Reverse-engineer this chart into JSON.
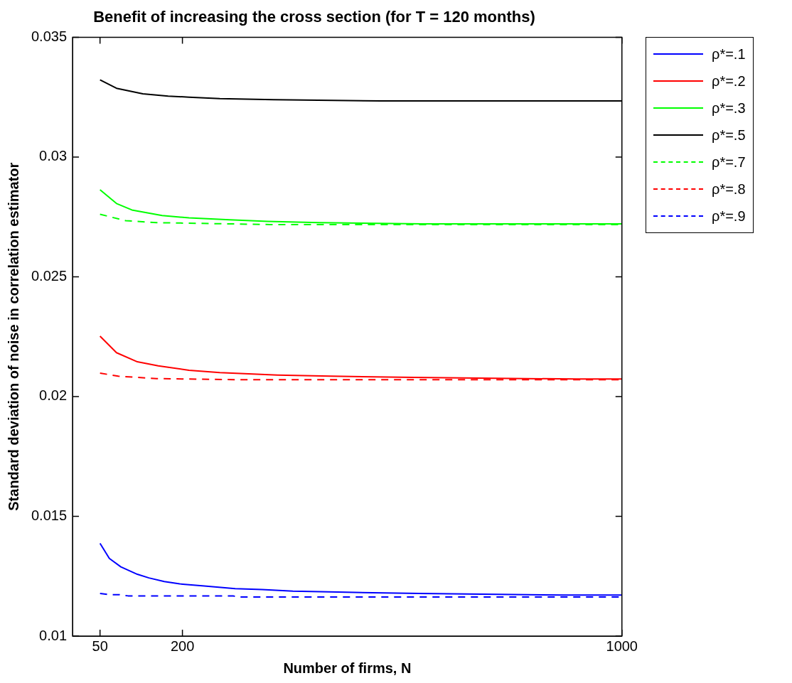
{
  "chart_data": {
    "type": "line",
    "title": "Benefit of increasing the cross section (for T = 120 months)",
    "xlabel": "Number of firms, N",
    "ylabel": "Standard deviation of noise in correlation estimator",
    "xlim": [
      0,
      1000
    ],
    "xticks": [
      50,
      200,
      1000
    ],
    "ylim": [
      0.01,
      0.035
    ],
    "yticks": [
      0.01,
      0.015,
      0.02,
      0.025,
      0.03,
      0.035
    ],
    "grid": false,
    "legend": "right",
    "marker": "none",
    "series": [
      {
        "name": "ρ*=.1",
        "color": "#0000ff",
        "line_style": "solid",
        "x": [
          50,
          67,
          88,
          118,
          139,
          167,
          195,
          240,
          296,
          345,
          401,
          498,
          631,
          893,
          1000
        ],
        "values": [
          0.01387,
          0.01324,
          0.01289,
          0.01258,
          0.01243,
          0.01228,
          0.01218,
          0.01209,
          0.01198,
          0.01194,
          0.01188,
          0.01183,
          0.01178,
          0.01171,
          0.01171
        ]
      },
      {
        "name": "ρ*=.2",
        "color": "#ff0000",
        "line_style": "solid",
        "x": [
          50,
          80,
          118,
          156,
          212,
          268,
          373,
          470,
          621,
          917,
          1000
        ],
        "values": [
          0.02252,
          0.02183,
          0.02145,
          0.02128,
          0.0211,
          0.021,
          0.0209,
          0.02085,
          0.0208,
          0.02073,
          0.02073
        ]
      },
      {
        "name": "ρ*=.3",
        "color": "#00ff00",
        "line_style": "solid",
        "x": [
          50,
          80,
          108,
          163,
          212,
          286,
          355,
          449,
          638,
          1000
        ],
        "values": [
          0.02863,
          0.02806,
          0.02779,
          0.02756,
          0.02746,
          0.02738,
          0.02731,
          0.02726,
          0.02721,
          0.02721
        ]
      },
      {
        "name": "ρ*=.5",
        "color": "#000000",
        "line_style": "solid",
        "x": [
          50,
          80,
          128,
          174,
          212,
          268,
          366,
          561,
          1000
        ],
        "values": [
          0.03322,
          0.03287,
          0.03264,
          0.03254,
          0.0325,
          0.03244,
          0.03239,
          0.03234,
          0.03234
        ]
      },
      {
        "name": "ρ*=.7",
        "color": "#00ff00",
        "line_style": "dashed",
        "x": [
          50,
          97,
          153,
          359,
          1000
        ],
        "values": [
          0.02761,
          0.02734,
          0.02726,
          0.02718,
          0.02718
        ]
      },
      {
        "name": "ρ*=.8",
        "color": "#ff0000",
        "line_style": "dashed",
        "x": [
          50,
          83,
          153,
          317,
          1000
        ],
        "values": [
          0.02098,
          0.02085,
          0.02075,
          0.0207,
          0.0207
        ]
      },
      {
        "name": "ρ*=.9",
        "color": "#0000ff",
        "line_style": "dashed",
        "x": [
          50,
          66,
          85,
          101,
          292,
          303,
          1000
        ],
        "values": [
          0.01178,
          0.01173,
          0.01173,
          0.01168,
          0.01168,
          0.01163,
          0.01163
        ]
      }
    ]
  }
}
